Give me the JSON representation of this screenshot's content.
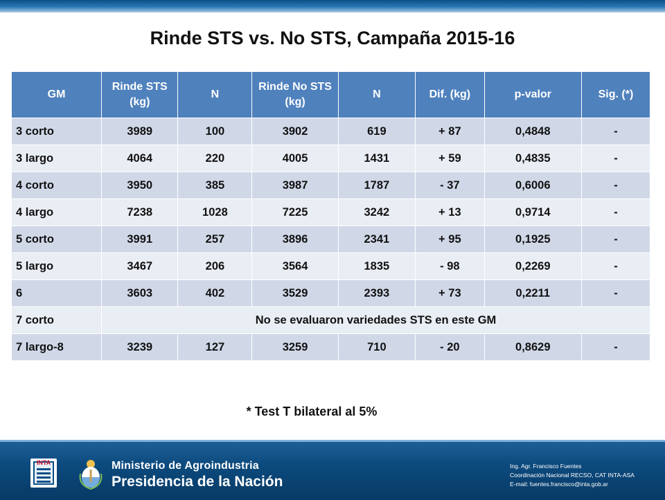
{
  "title": "Rinde STS vs. No STS, Campaña 2015-16",
  "table": {
    "headers": [
      "GM",
      "Rinde STS (kg)",
      "N",
      "Rinde No STS (kg)",
      "N",
      "Dif. (kg)",
      "p-valor",
      "Sig. (*)"
    ],
    "rows": [
      {
        "gm": "3 corto",
        "rinde_sts": "3989",
        "n_sts": "100",
        "rinde_no_sts": "3902",
        "n_no_sts": "619",
        "dif": "+ 87",
        "p_valor": "0,4848",
        "sig": "-"
      },
      {
        "gm": "3 largo",
        "rinde_sts": "4064",
        "n_sts": "220",
        "rinde_no_sts": "4005",
        "n_no_sts": "1431",
        "dif": "+ 59",
        "p_valor": "0,4835",
        "sig": "-"
      },
      {
        "gm": "4 corto",
        "rinde_sts": "3950",
        "n_sts": "385",
        "rinde_no_sts": "3987",
        "n_no_sts": "1787",
        "dif": "- 37",
        "p_valor": "0,6006",
        "sig": "-"
      },
      {
        "gm": "4 largo",
        "rinde_sts": "7238",
        "n_sts": "1028",
        "rinde_no_sts": "7225",
        "n_no_sts": "3242",
        "dif": "+ 13",
        "p_valor": "0,9714",
        "sig": "-"
      },
      {
        "gm": "5 corto",
        "rinde_sts": "3991",
        "n_sts": "257",
        "rinde_no_sts": "3896",
        "n_no_sts": "2341",
        "dif": "+ 95",
        "p_valor": "0,1925",
        "sig": "-"
      },
      {
        "gm": "5 largo",
        "rinde_sts": "3467",
        "n_sts": "206",
        "rinde_no_sts": "3564",
        "n_no_sts": "1835",
        "dif": "- 98",
        "p_valor": "0,2269",
        "sig": "-"
      },
      {
        "gm": "6",
        "rinde_sts": "3603",
        "n_sts": "402",
        "rinde_no_sts": "3529",
        "n_no_sts": "2393",
        "dif": "+ 73",
        "p_valor": "0,2211",
        "sig": "-"
      },
      {
        "gm": "7 corto",
        "note": "No se evaluaron variedades STS en este GM"
      },
      {
        "gm": "7 largo-8",
        "rinde_sts": "3239",
        "n_sts": "127",
        "rinde_no_sts": "3259",
        "n_no_sts": "710",
        "dif": "- 20",
        "p_valor": "0,8629",
        "sig": "-"
      }
    ]
  },
  "footnote": "* Test T bilateral al 5%",
  "footer": {
    "inta_logo_text": "INTA",
    "ministry_line1": "Ministerio de Agroindustria",
    "ministry_line2": "Presidencia de la Nación",
    "credits": [
      "Ing. Agr. Francisco Fuentes",
      "Coordinación Nacional RECSO, CAT INTA-ASA",
      "E-mail: fuentes.francisco@inta.gob.ar"
    ],
    "colors": {
      "bar": "#0c4a7d",
      "header": "#4f81bd",
      "row_odd": "#d0d8e8",
      "row_even": "#e9edf4"
    }
  }
}
